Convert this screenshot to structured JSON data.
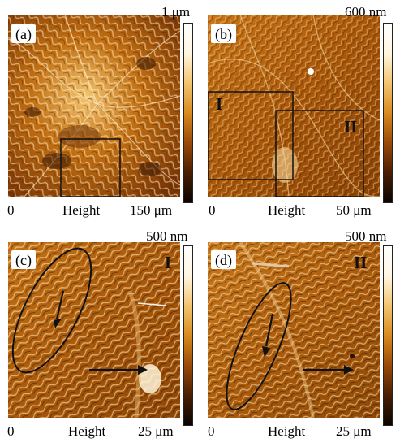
{
  "panels": [
    {
      "label": "(a)",
      "scale_max": "1 μm",
      "axis_start": "0",
      "axis_mid": "Height",
      "axis_end": "150 μm",
      "region": ""
    },
    {
      "label": "(b)",
      "scale_max": "600 nm",
      "axis_start": "0",
      "axis_mid": "Height",
      "axis_end": "50 μm",
      "region": "",
      "box_labels": [
        "I",
        "II"
      ]
    },
    {
      "label": "(c)",
      "scale_max": "500 nm",
      "axis_start": "0",
      "axis_mid": "Height",
      "axis_end": "25 μm",
      "region": "I"
    },
    {
      "label": "(d)",
      "scale_max": "500 nm",
      "axis_start": "0",
      "axis_mid": "Height",
      "axis_end": "25 μm",
      "region": "II"
    }
  ],
  "colors": {
    "dark": "#1a0a00",
    "mid": "#b5640a",
    "light": "#f0c070",
    "highlight": "#fff3d6"
  },
  "colorbar_colors": [
    "#ffffff",
    "#fff6e0",
    "#f3c46f",
    "#d98a1e",
    "#9a4a06",
    "#4a1e02",
    "#0a0400"
  ]
}
